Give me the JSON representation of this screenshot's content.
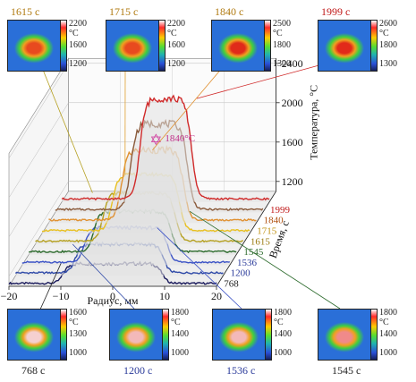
{
  "chart_data": {
    "type": "line",
    "title": "",
    "xlabel": "Радиус, мм",
    "ylabel": "Температура, °C",
    "zlabel": "Время, с",
    "xlim": [
      -20,
      20
    ],
    "x_ticks": [
      "−20",
      "−10",
      "0",
      "10",
      "20"
    ],
    "ylim": [
      1100,
      2450
    ],
    "y_ticks": [
      "1200",
      "1600",
      "2000",
      "2400"
    ],
    "series": [
      {
        "name": "768",
        "color": "#1a1a5c",
        "plateau": 1330,
        "halfwidth": 9.5
      },
      {
        "name": "1200",
        "color": "#2f4aa8",
        "plateau": 1420,
        "halfwidth": 8.5
      },
      {
        "name": "1536",
        "color": "#3b52c6",
        "plateau": 1480,
        "halfwidth": 8.0
      },
      {
        "name": "1545",
        "color": "#2d6b2d",
        "plateau": 1540,
        "halfwidth": 7.5
      },
      {
        "name": "1615",
        "color": "#b5a020",
        "plateau": 1620,
        "halfwidth": 7.0
      },
      {
        "name": "1715",
        "color": "#e8c020",
        "plateau": 1700,
        "halfwidth": 6.5
      },
      {
        "name": "1840",
        "color": "#e09030",
        "plateau": 1840,
        "halfwidth": 6.0
      },
      {
        "name": "1999",
        "color": "#8a5a3a",
        "plateau": 2000,
        "halfwidth": 5.5
      },
      {
        "name": "1999",
        "color": "#d02a2a",
        "plateau": 2150,
        "halfwidth": 5.0
      }
    ],
    "time_ticks": [
      "768",
      "1200",
      "1536",
      "1545",
      "1615",
      "1715",
      "1840",
      "1999"
    ],
    "annotation": "1840°C"
  },
  "thermograms": [
    {
      "caption": "1615 с",
      "color": "#b07a10",
      "ticks": [
        "2200",
        "°C",
        "1600",
        "1200"
      ],
      "spot": "#e84a1f"
    },
    {
      "caption": "1715 с",
      "color": "#b07a10",
      "ticks": [
        "2200",
        "°C",
        "1600",
        "1200"
      ],
      "spot": "#e84a1f"
    },
    {
      "caption": "1840 с",
      "color": "#b07a10",
      "ticks": [
        "2500",
        "°C",
        "1800",
        "1300"
      ],
      "spot": "#e02a1a"
    },
    {
      "caption": "1999 с",
      "color": "#c01818",
      "ticks": [
        "2600",
        "°C",
        "1800",
        "1300"
      ],
      "spot": "#e22a1a"
    },
    {
      "caption": "768 с",
      "color": "#222222",
      "ticks": [
        "1600",
        "°C",
        "1300",
        "1000"
      ],
      "spot": "#f5d0d0"
    },
    {
      "caption": "1200 с",
      "color": "#2a3a9a",
      "ticks": [
        "1800",
        "°C",
        "1400",
        "1000"
      ],
      "spot": "#f3b9b9"
    },
    {
      "caption": "1536 с",
      "color": "#2a3a9a",
      "ticks": [
        "1800",
        "°C",
        "1400",
        "1000"
      ],
      "spot": "#f3b9b9"
    },
    {
      "caption": "1545 с",
      "color": "#222222",
      "ticks": [
        "1800",
        "°C",
        "1400",
        "1000"
      ],
      "spot": "#f08a8a"
    }
  ]
}
